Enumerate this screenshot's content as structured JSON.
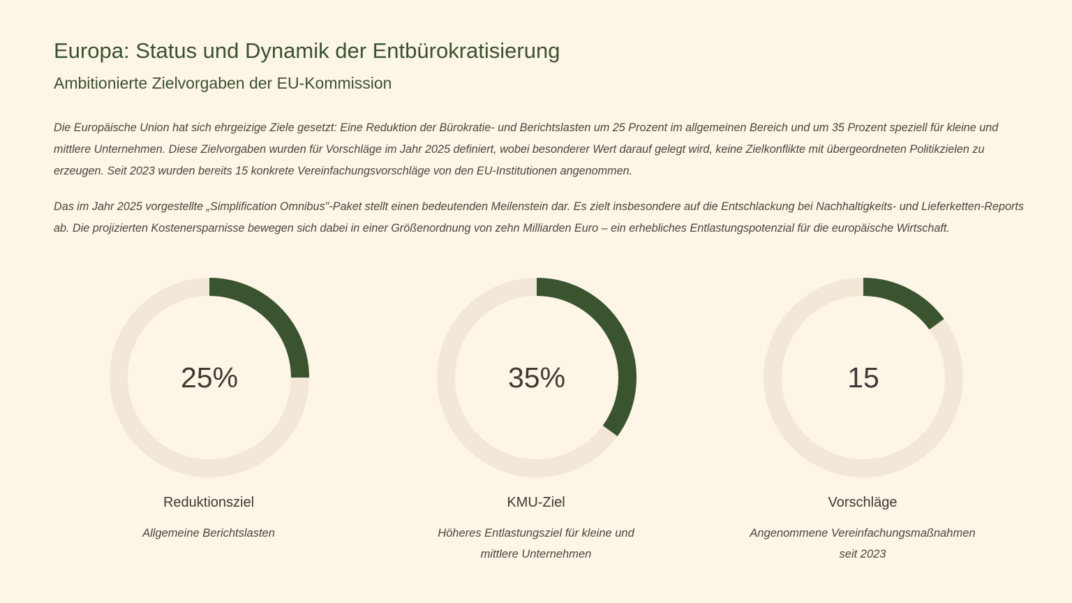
{
  "header": {
    "title": "Europa: Status und Dynamik der Entbürokratisierung",
    "subtitle": "Ambitionierte Zielvorgaben der EU-Kommission"
  },
  "body": {
    "paragraph_1": "Die Europäische Union hat sich ehrgeizige Ziele gesetzt: Eine Reduktion der Bürokratie- und Berichtslasten um 25 Prozent im allgemeinen Bereich und um 35 Prozent speziell für kleine und mittlere Unternehmen. Diese Zielvorgaben wurden für Vorschläge im Jahr 2025 definiert, wobei besonderer Wert darauf gelegt wird, keine Zielkonflikte mit übergeordneten Politikzielen zu erzeugen. Seit 2023 wurden bereits 15 konkrete Vereinfachungsvorschläge von den EU-Institutionen angenommen.",
    "paragraph_2": "Das im Jahr 2025 vorgestellte „Simplification Omnibus\"-Paket stellt einen bedeutenden Meilenstein dar. Es zielt insbesondere auf die Entschlackung bei Nachhaltigkeits- und Lieferketten-Reports ab. Die projizierten Kostenersparnisse bewegen sich dabei in einer Größenordnung von zehn Milliarden Euro – ein erhebliches Entlastungspotenzial für die europäische Wirtschaft."
  },
  "colors": {
    "accent": "#3a5430",
    "track": "#f3e8d8",
    "background": "#fdf5e6"
  },
  "chart_data": [
    {
      "type": "pie",
      "style": "donut",
      "value": 25,
      "max": 100,
      "display_value": "25%",
      "label": "Reduktionsziel",
      "description": "Allgemeine Berichtslasten"
    },
    {
      "type": "pie",
      "style": "donut",
      "value": 35,
      "max": 100,
      "display_value": "35%",
      "label": "KMU-Ziel",
      "description": "Höheres Entlastungsziel für kleine und mittlere Unternehmen"
    },
    {
      "type": "pie",
      "style": "donut",
      "value": 15,
      "max": 100,
      "display_value": "15",
      "label": "Vorschläge",
      "description": "Angenommene Vereinfachungsmaßnahmen seit 2023"
    }
  ]
}
